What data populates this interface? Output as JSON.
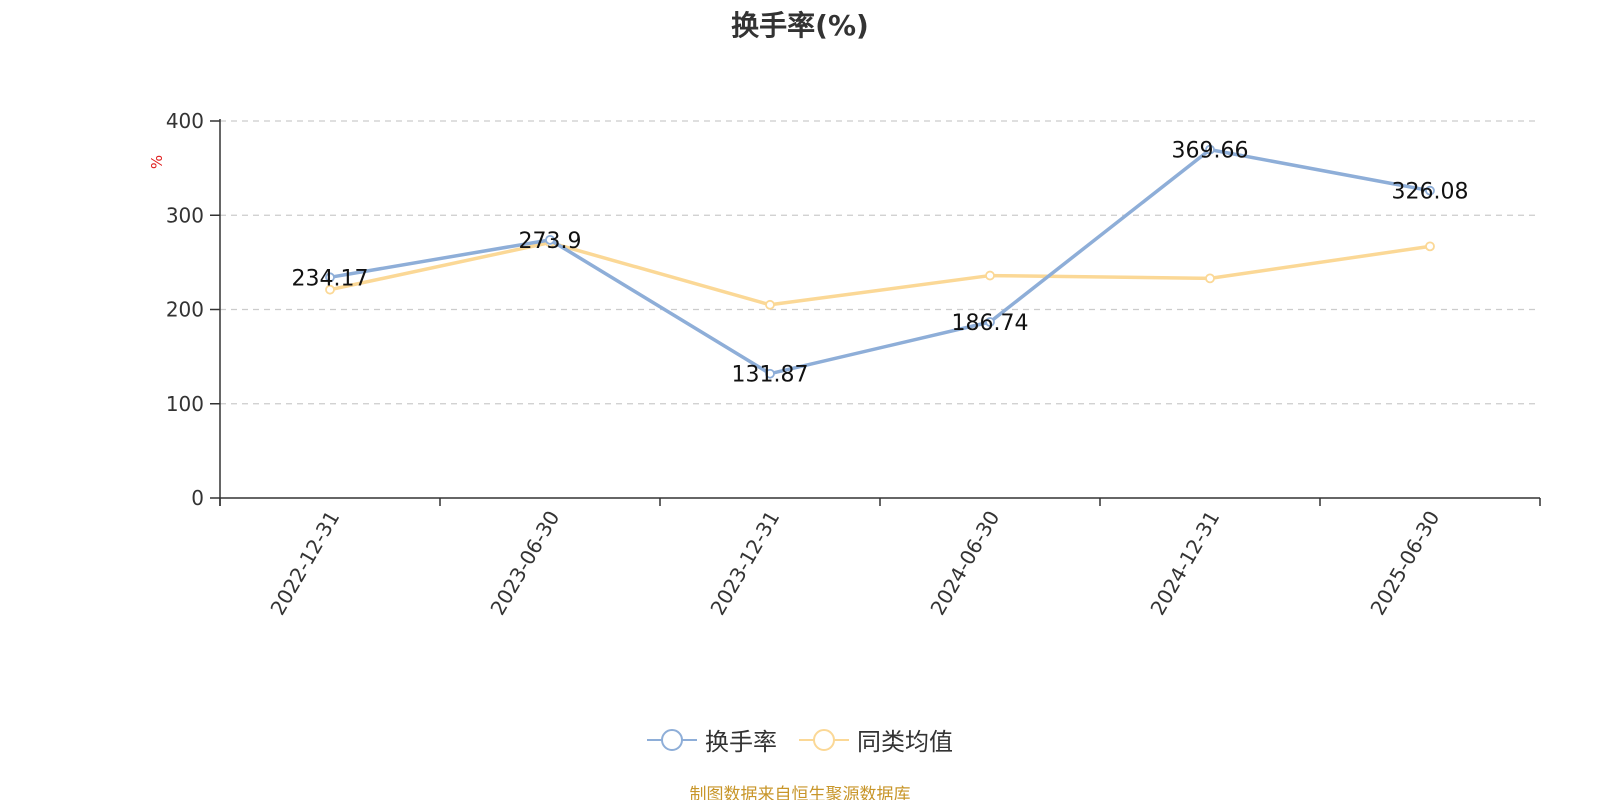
{
  "chart_data": {
    "type": "line",
    "title": "换手率(%)",
    "ylabel": "%",
    "ylim": [
      0,
      400
    ],
    "yticks": [
      0,
      100,
      200,
      300,
      400
    ],
    "categories": [
      "2022-12-31",
      "2023-06-30",
      "2023-12-31",
      "2024-06-30",
      "2024-12-31",
      "2025-06-30"
    ],
    "grid": true,
    "legend_position": "bottom",
    "series": [
      {
        "name": "换手率",
        "values": [
          234.17,
          273.9,
          131.87,
          186.74,
          369.66,
          326.08
        ],
        "labels": [
          "234.17",
          "273.9",
          "131.87",
          "186.74",
          "369.66",
          "326.08"
        ],
        "color": "#8eaed8"
      },
      {
        "name": "同类均值",
        "values": [
          221,
          271,
          205,
          236,
          233,
          267
        ],
        "color": "#fbd896"
      }
    ]
  },
  "source_note": "制图数据来自恒生聚源数据库"
}
